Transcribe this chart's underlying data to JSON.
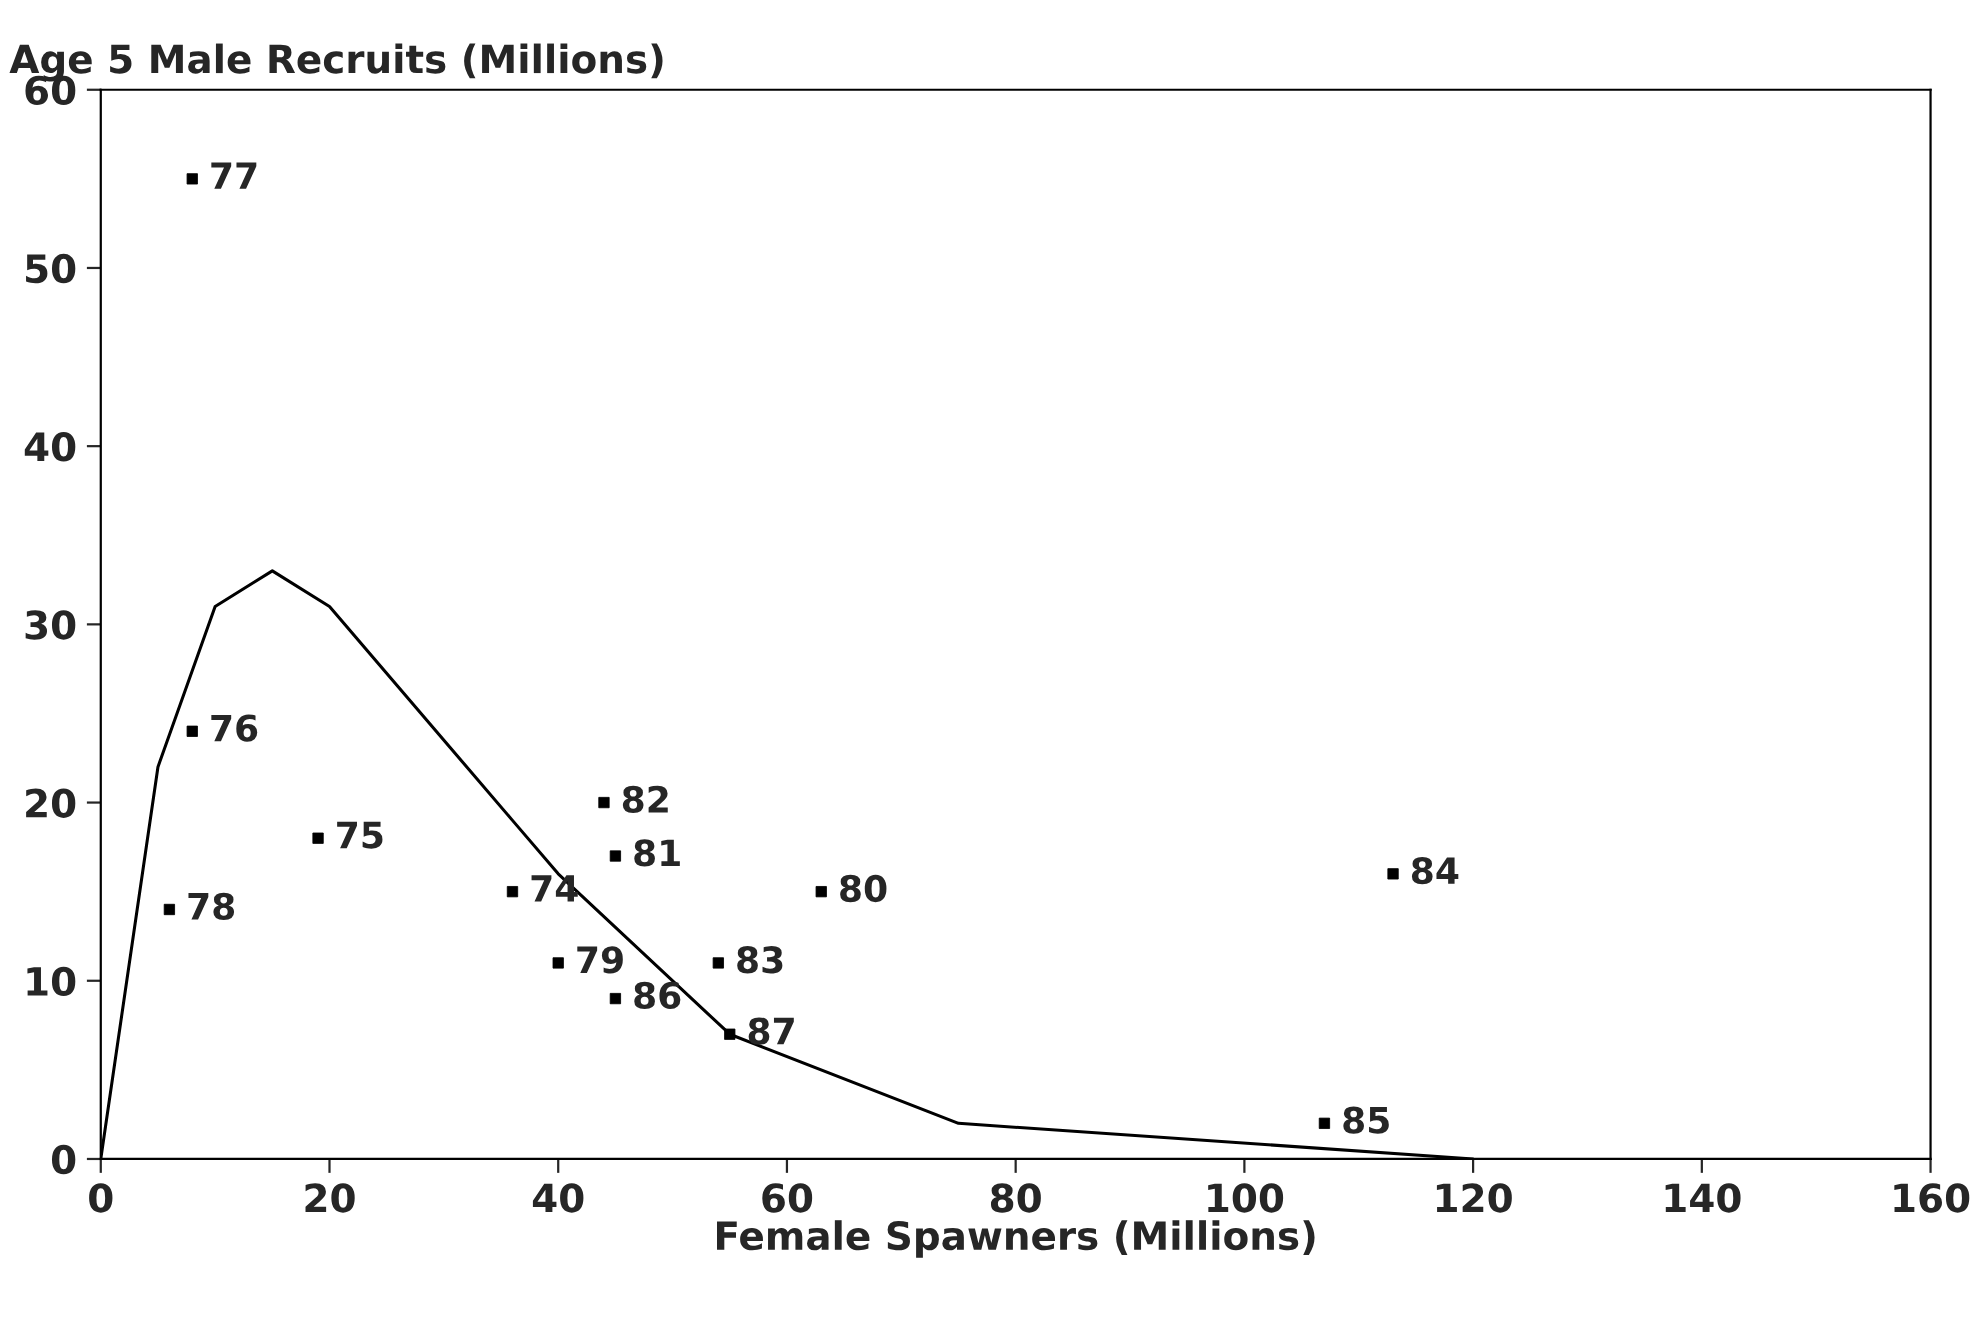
{
  "chart_data": {
    "type": "scatter",
    "title": "Age 5 Male Recruits (Millions)",
    "xlabel": "Female Spawners (Millions)",
    "xlim": [
      0,
      160
    ],
    "xticks": [
      0,
      20,
      40,
      60,
      80,
      100,
      120,
      140,
      160
    ],
    "ylim": [
      0,
      60
    ],
    "yticks": [
      0,
      10,
      20,
      30,
      40,
      50,
      60
    ],
    "grid": false,
    "legend": false,
    "series": [
      {
        "marker": "square",
        "color": "#000000",
        "x": [
          8,
          8,
          6,
          19,
          36,
          44,
          45,
          63,
          113,
          40,
          54,
          45,
          55,
          107
        ],
        "values": [
          55,
          24,
          14,
          18,
          15,
          20,
          17,
          15,
          16,
          11,
          11,
          9,
          7,
          2
        ]
      },
      {
        "type": "line",
        "color": "#000000",
        "line_style": "solid",
        "x": [
          0,
          5,
          10,
          15,
          20,
          36,
          40,
          55,
          75,
          120
        ],
        "values": [
          0,
          22,
          31,
          33,
          31,
          19,
          16,
          7,
          2,
          0
        ]
      }
    ],
    "annotations": [
      {
        "text": "77",
        "x": 8,
        "y": 55
      },
      {
        "text": "76",
        "x": 8,
        "y": 24
      },
      {
        "text": "78",
        "x": 6,
        "y": 14
      },
      {
        "text": "75",
        "x": 19,
        "y": 18
      },
      {
        "text": "74",
        "x": 36,
        "y": 15
      },
      {
        "text": "82",
        "x": 44,
        "y": 20
      },
      {
        "text": "81",
        "x": 45,
        "y": 17
      },
      {
        "text": "80",
        "x": 63,
        "y": 15
      },
      {
        "text": "84",
        "x": 113,
        "y": 16
      },
      {
        "text": "79",
        "x": 40,
        "y": 11
      },
      {
        "text": "83",
        "x": 54,
        "y": 11
      },
      {
        "text": "86",
        "x": 45,
        "y": 9
      },
      {
        "text": "87",
        "x": 55,
        "y": 7
      },
      {
        "text": "85",
        "x": 107,
        "y": 2
      }
    ]
  }
}
